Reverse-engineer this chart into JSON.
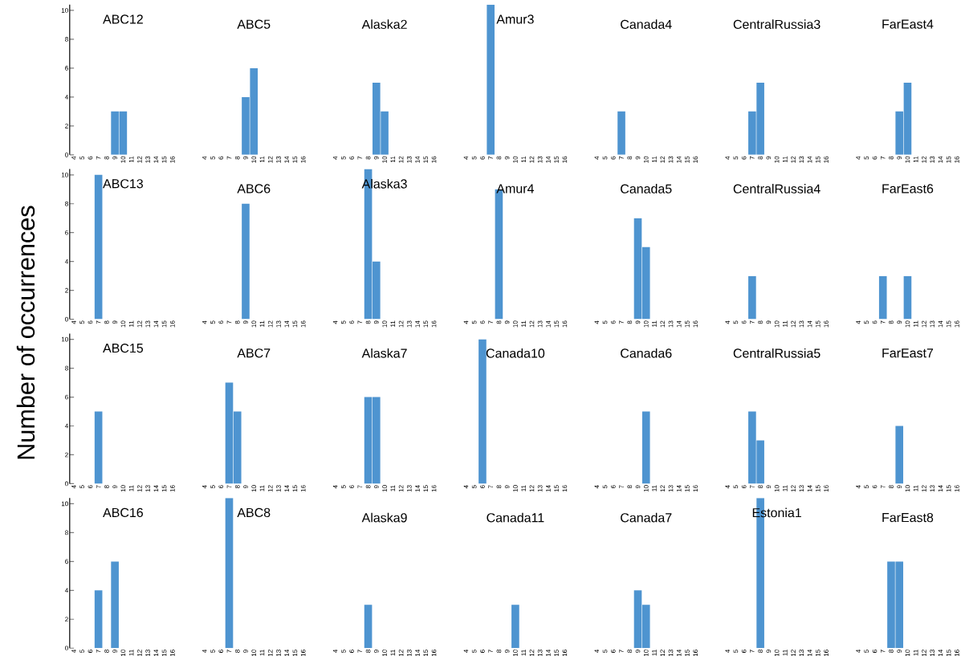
{
  "chart_data": [
    {
      "type": "bar",
      "title": "ABC12",
      "categories": [
        "4",
        "5",
        "6",
        "7",
        "8",
        "9",
        "10",
        "11",
        "12",
        "13",
        "14",
        "15",
        "16"
      ],
      "values": [
        0,
        0,
        0,
        0,
        0,
        3,
        3,
        0,
        0,
        0,
        0,
        0,
        0
      ],
      "color": "#4e94d0",
      "ylim": [
        0,
        10.4
      ],
      "yticks": [
        0,
        2,
        4,
        6,
        8,
        10
      ]
    },
    {
      "type": "bar",
      "title": "ABC5",
      "categories": [
        "4",
        "5",
        "6",
        "7",
        "8",
        "9",
        "10",
        "11",
        "12",
        "13",
        "14",
        "15",
        "16"
      ],
      "values": [
        0,
        0,
        0,
        0,
        0,
        4,
        6,
        0,
        0,
        0,
        0,
        0,
        0
      ],
      "color": "#4e94d0",
      "ylim": [
        0,
        10
      ],
      "yticks": [
        0,
        2,
        4,
        6,
        8,
        10
      ],
      "tick_labels": "x"
    },
    {
      "type": "bar",
      "title": "Alaska2",
      "categories": [
        "4",
        "5",
        "6",
        "7",
        "8",
        "9",
        "10",
        "11",
        "12",
        "13",
        "14",
        "15",
        "16"
      ],
      "values": [
        0,
        0,
        0,
        0,
        0,
        5,
        3,
        0,
        0,
        0,
        0,
        0,
        0
      ],
      "color": "#4e94d0",
      "ylim": [
        0,
        10
      ],
      "yticks": [
        0,
        2,
        4,
        6,
        8,
        10
      ],
      "tick_labels": "x"
    },
    {
      "type": "bar",
      "title": "Amur3",
      "categories": [
        "4",
        "5",
        "6",
        "7",
        "8",
        "9",
        "10",
        "11",
        "12",
        "13",
        "14",
        "15",
        "16"
      ],
      "values": [
        0,
        0,
        0,
        10.4,
        0,
        0,
        0,
        0,
        0,
        0,
        0,
        0,
        0
      ],
      "color": "#4e94d0",
      "ylim": [
        0,
        10.4
      ],
      "yticks": [
        0,
        2,
        4,
        6,
        8,
        10
      ],
      "tick_labels": "x"
    },
    {
      "type": "bar",
      "title": "Canada4",
      "categories": [
        "4",
        "5",
        "6",
        "7",
        "8",
        "9",
        "10",
        "11",
        "12",
        "13",
        "14",
        "15",
        "16"
      ],
      "values": [
        0,
        0,
        0,
        3,
        0,
        0,
        0,
        0,
        0,
        0,
        0,
        0,
        0
      ],
      "color": "#4e94d0",
      "ylim": [
        0,
        10
      ],
      "yticks": [
        0,
        2,
        4,
        6,
        8,
        10
      ],
      "tick_labels": "x"
    },
    {
      "type": "bar",
      "title": "CentralRussia3",
      "categories": [
        "4",
        "5",
        "6",
        "7",
        "8",
        "9",
        "10",
        "11",
        "12",
        "13",
        "14",
        "15",
        "16"
      ],
      "values": [
        0,
        0,
        0,
        3,
        5,
        0,
        0,
        0,
        0,
        0,
        0,
        0,
        0
      ],
      "color": "#4e94d0",
      "ylim": [
        0,
        10
      ],
      "yticks": [
        0,
        2,
        4,
        6,
        8,
        10
      ],
      "tick_labels": "x"
    },
    {
      "type": "bar",
      "title": "FarEast4",
      "categories": [
        "4",
        "5",
        "6",
        "7",
        "8",
        "9",
        "10",
        "11",
        "12",
        "13",
        "14",
        "15",
        "16"
      ],
      "values": [
        0,
        0,
        0,
        0,
        0,
        3,
        5,
        0,
        0,
        0,
        0,
        0,
        0
      ],
      "color": "#4e94d0",
      "ylim": [
        0,
        10
      ],
      "yticks": [
        0,
        2,
        4,
        6,
        8,
        10
      ],
      "tick_labels": "x"
    },
    {
      "type": "bar",
      "title": "ABC13",
      "categories": [
        "4",
        "5",
        "6",
        "7",
        "8",
        "9",
        "10",
        "11",
        "12",
        "13",
        "14",
        "15",
        "16"
      ],
      "values": [
        0,
        0,
        0,
        10,
        0,
        0,
        0,
        0,
        0,
        0,
        0,
        0,
        0
      ],
      "color": "#4e94d0",
      "ylim": [
        0,
        10.4
      ],
      "yticks": [
        0,
        2,
        4,
        6,
        8,
        10
      ]
    },
    {
      "type": "bar",
      "title": "ABC6",
      "categories": [
        "4",
        "5",
        "6",
        "7",
        "8",
        "9",
        "10",
        "11",
        "12",
        "13",
        "14",
        "15",
        "16"
      ],
      "values": [
        0,
        0,
        0,
        0,
        0,
        8,
        0,
        0,
        0,
        0,
        0,
        0,
        0
      ],
      "color": "#4e94d0",
      "ylim": [
        0,
        10
      ],
      "yticks": [
        0,
        2,
        4,
        6,
        8,
        10
      ],
      "tick_labels": "x"
    },
    {
      "type": "bar",
      "title": "Alaska3",
      "categories": [
        "4",
        "5",
        "6",
        "7",
        "8",
        "9",
        "10",
        "11",
        "12",
        "13",
        "14",
        "15",
        "16"
      ],
      "values": [
        0,
        0,
        0,
        0,
        10.4,
        4,
        0,
        0,
        0,
        0,
        0,
        0,
        0
      ],
      "color": "#4e94d0",
      "ylim": [
        0,
        10.4
      ],
      "yticks": [
        0,
        2,
        4,
        6,
        8,
        10
      ],
      "tick_labels": "x"
    },
    {
      "type": "bar",
      "title": "Amur4",
      "categories": [
        "4",
        "5",
        "6",
        "7",
        "8",
        "9",
        "10",
        "11",
        "12",
        "13",
        "14",
        "15",
        "16"
      ],
      "values": [
        0,
        0,
        0,
        0,
        9,
        0,
        0,
        0,
        0,
        0,
        0,
        0,
        0
      ],
      "color": "#4e94d0",
      "ylim": [
        0,
        10
      ],
      "yticks": [
        0,
        2,
        4,
        6,
        8,
        10
      ],
      "tick_labels": "x"
    },
    {
      "type": "bar",
      "title": "Canada5",
      "categories": [
        "4",
        "5",
        "6",
        "7",
        "8",
        "9",
        "10",
        "11",
        "12",
        "13",
        "14",
        "15",
        "16"
      ],
      "values": [
        0,
        0,
        0,
        0,
        0,
        7,
        5,
        0,
        0,
        0,
        0,
        0,
        0
      ],
      "color": "#4e94d0",
      "ylim": [
        0,
        10
      ],
      "yticks": [
        0,
        2,
        4,
        6,
        8,
        10
      ],
      "tick_labels": "x"
    },
    {
      "type": "bar",
      "title": "CentralRussia4",
      "categories": [
        "4",
        "5",
        "6",
        "7",
        "8",
        "9",
        "10",
        "11",
        "12",
        "13",
        "14",
        "15",
        "16"
      ],
      "values": [
        0,
        0,
        0,
        3,
        0,
        0,
        0,
        0,
        0,
        0,
        0,
        0,
        0
      ],
      "color": "#4e94d0",
      "ylim": [
        0,
        10
      ],
      "yticks": [
        0,
        2,
        4,
        6,
        8,
        10
      ],
      "tick_labels": "x"
    },
    {
      "type": "bar",
      "title": "FarEast6",
      "categories": [
        "4",
        "5",
        "6",
        "7",
        "8",
        "9",
        "10",
        "11",
        "12",
        "13",
        "14",
        "15",
        "16"
      ],
      "values": [
        0,
        0,
        0,
        3,
        0,
        0,
        3,
        0,
        0,
        0,
        0,
        0,
        0
      ],
      "color": "#4e94d0",
      "ylim": [
        0,
        10
      ],
      "yticks": [
        0,
        2,
        4,
        6,
        8,
        10
      ],
      "tick_labels": "x"
    },
    {
      "type": "bar",
      "title": "ABC15",
      "ylabel": "Number of occurrences",
      "categories": [
        "4",
        "5",
        "6",
        "7",
        "8",
        "9",
        "10",
        "11",
        "12",
        "13",
        "14",
        "15",
        "16"
      ],
      "values": [
        0,
        0,
        0,
        5,
        0,
        0,
        0,
        0,
        0,
        0,
        0,
        0,
        0
      ],
      "color": "#4e94d0",
      "ylim": [
        0,
        10.4
      ],
      "yticks": [
        0,
        2,
        4,
        6,
        8,
        10
      ]
    },
    {
      "type": "bar",
      "title": "ABC7",
      "categories": [
        "4",
        "5",
        "6",
        "7",
        "8",
        "9",
        "10",
        "11",
        "12",
        "13",
        "14",
        "15",
        "16"
      ],
      "values": [
        0,
        0,
        0,
        7,
        5,
        0,
        0,
        0,
        0,
        0,
        0,
        0,
        0
      ],
      "color": "#4e94d0",
      "ylim": [
        0,
        10
      ],
      "yticks": [
        0,
        2,
        4,
        6,
        8,
        10
      ],
      "tick_labels": "x"
    },
    {
      "type": "bar",
      "title": "Alaska7",
      "categories": [
        "4",
        "5",
        "6",
        "7",
        "8",
        "9",
        "10",
        "11",
        "12",
        "13",
        "14",
        "15",
        "16"
      ],
      "values": [
        0,
        0,
        0,
        0,
        6,
        6,
        0,
        0,
        0,
        0,
        0,
        0,
        0
      ],
      "color": "#4e94d0",
      "ylim": [
        0,
        10
      ],
      "yticks": [
        0,
        2,
        4,
        6,
        8,
        10
      ],
      "tick_labels": "x"
    },
    {
      "type": "bar",
      "title": "Canada10",
      "categories": [
        "4",
        "5",
        "6",
        "7",
        "8",
        "9",
        "10",
        "11",
        "12",
        "13",
        "14",
        "15",
        "16"
      ],
      "values": [
        0,
        0,
        10,
        0,
        0,
        0,
        0,
        0,
        0,
        0,
        0,
        0,
        0
      ],
      "color": "#4e94d0",
      "ylim": [
        0,
        10
      ],
      "yticks": [
        0,
        2,
        4,
        6,
        8,
        10
      ],
      "tick_labels": "x"
    },
    {
      "type": "bar",
      "title": "Canada6",
      "categories": [
        "4",
        "5",
        "6",
        "7",
        "8",
        "9",
        "10",
        "11",
        "12",
        "13",
        "14",
        "15",
        "16"
      ],
      "values": [
        0,
        0,
        0,
        0,
        0,
        0,
        5,
        0,
        0,
        0,
        0,
        0,
        0
      ],
      "color": "#4e94d0",
      "ylim": [
        0,
        10
      ],
      "yticks": [
        0,
        2,
        4,
        6,
        8,
        10
      ],
      "tick_labels": "x"
    },
    {
      "type": "bar",
      "title": "CentralRussia5",
      "categories": [
        "4",
        "5",
        "6",
        "7",
        "8",
        "9",
        "10",
        "11",
        "12",
        "13",
        "14",
        "15",
        "16"
      ],
      "values": [
        0,
        0,
        0,
        5,
        3,
        0,
        0,
        0,
        0,
        0,
        0,
        0,
        0
      ],
      "color": "#4e94d0",
      "ylim": [
        0,
        10
      ],
      "yticks": [
        0,
        2,
        4,
        6,
        8,
        10
      ],
      "tick_labels": "x"
    },
    {
      "type": "bar",
      "title": "FarEast7",
      "categories": [
        "4",
        "5",
        "6",
        "7",
        "8",
        "9",
        "10",
        "11",
        "12",
        "13",
        "14",
        "15",
        "16"
      ],
      "values": [
        0,
        0,
        0,
        0,
        0,
        4,
        0,
        0,
        0,
        0,
        0,
        0,
        0
      ],
      "color": "#4e94d0",
      "ylim": [
        0,
        10
      ],
      "yticks": [
        0,
        2,
        4,
        6,
        8,
        10
      ],
      "tick_labels": "x"
    },
    {
      "type": "bar",
      "title": "ABC16",
      "categories": [
        "4",
        "5",
        "6",
        "7",
        "8",
        "9",
        "10",
        "11",
        "12",
        "13",
        "14",
        "15",
        "16"
      ],
      "values": [
        0,
        0,
        0,
        4,
        0,
        6,
        0,
        0,
        0,
        0,
        0,
        0,
        0
      ],
      "color": "#4e94d0",
      "ylim": [
        0,
        10.4
      ],
      "yticks": [
        0,
        2,
        4,
        6,
        8,
        10
      ]
    },
    {
      "type": "bar",
      "title": "ABC8",
      "categories": [
        "4",
        "5",
        "6",
        "7",
        "8",
        "9",
        "10",
        "11",
        "12",
        "13",
        "14",
        "15",
        "16"
      ],
      "values": [
        0,
        0,
        0,
        10.4,
        0,
        0,
        0,
        0,
        0,
        0,
        0,
        0,
        0
      ],
      "color": "#4e94d0",
      "ylim": [
        0,
        10.4
      ],
      "yticks": [
        0,
        2,
        4,
        6,
        8,
        10
      ],
      "tick_labels": "x"
    },
    {
      "type": "bar",
      "title": "Alaska9",
      "categories": [
        "4",
        "5",
        "6",
        "7",
        "8",
        "9",
        "10",
        "11",
        "12",
        "13",
        "14",
        "15",
        "16"
      ],
      "values": [
        0,
        0,
        0,
        0,
        3,
        0,
        0,
        0,
        0,
        0,
        0,
        0,
        0
      ],
      "color": "#4e94d0",
      "ylim": [
        0,
        10
      ],
      "yticks": [
        0,
        2,
        4,
        6,
        8,
        10
      ],
      "tick_labels": "x"
    },
    {
      "type": "bar",
      "title": "Canada11",
      "categories": [
        "4",
        "5",
        "6",
        "7",
        "8",
        "9",
        "10",
        "11",
        "12",
        "13",
        "14",
        "15",
        "16"
      ],
      "values": [
        0,
        0,
        0,
        0,
        0,
        0,
        3,
        0,
        0,
        0,
        0,
        0,
        0
      ],
      "color": "#4e94d0",
      "ylim": [
        0,
        10
      ],
      "yticks": [
        0,
        2,
        4,
        6,
        8,
        10
      ],
      "tick_labels": "x"
    },
    {
      "type": "bar",
      "title": "Canada7",
      "categories": [
        "4",
        "5",
        "6",
        "7",
        "8",
        "9",
        "10",
        "11",
        "12",
        "13",
        "14",
        "15",
        "16"
      ],
      "values": [
        0,
        0,
        0,
        0,
        0,
        4,
        3,
        0,
        0,
        0,
        0,
        0,
        0
      ],
      "color": "#4e94d0",
      "ylim": [
        0,
        10
      ],
      "yticks": [
        0,
        2,
        4,
        6,
        8,
        10
      ],
      "tick_labels": "x"
    },
    {
      "type": "bar",
      "title": "Estonia1",
      "categories": [
        "4",
        "5",
        "6",
        "7",
        "8",
        "9",
        "10",
        "11",
        "12",
        "13",
        "14",
        "15",
        "16"
      ],
      "values": [
        0,
        0,
        0,
        0,
        10.4,
        0,
        0,
        0,
        0,
        0,
        0,
        0,
        0
      ],
      "color": "#4e94d0",
      "ylim": [
        0,
        10.4
      ],
      "yticks": [
        0,
        2,
        4,
        6,
        8,
        10
      ],
      "tick_labels": "x"
    },
    {
      "type": "bar",
      "title": "FarEast8",
      "categories": [
        "4",
        "5",
        "6",
        "7",
        "8",
        "9",
        "10",
        "11",
        "12",
        "13",
        "14",
        "15",
        "16"
      ],
      "values": [
        0,
        0,
        0,
        0,
        6,
        6,
        0,
        0,
        0,
        0,
        0,
        0,
        0
      ],
      "color": "#4e94d0",
      "ylim": [
        0,
        10
      ],
      "yticks": [
        0,
        2,
        4,
        6,
        8,
        10
      ],
      "tick_labels": "x"
    }
  ]
}
